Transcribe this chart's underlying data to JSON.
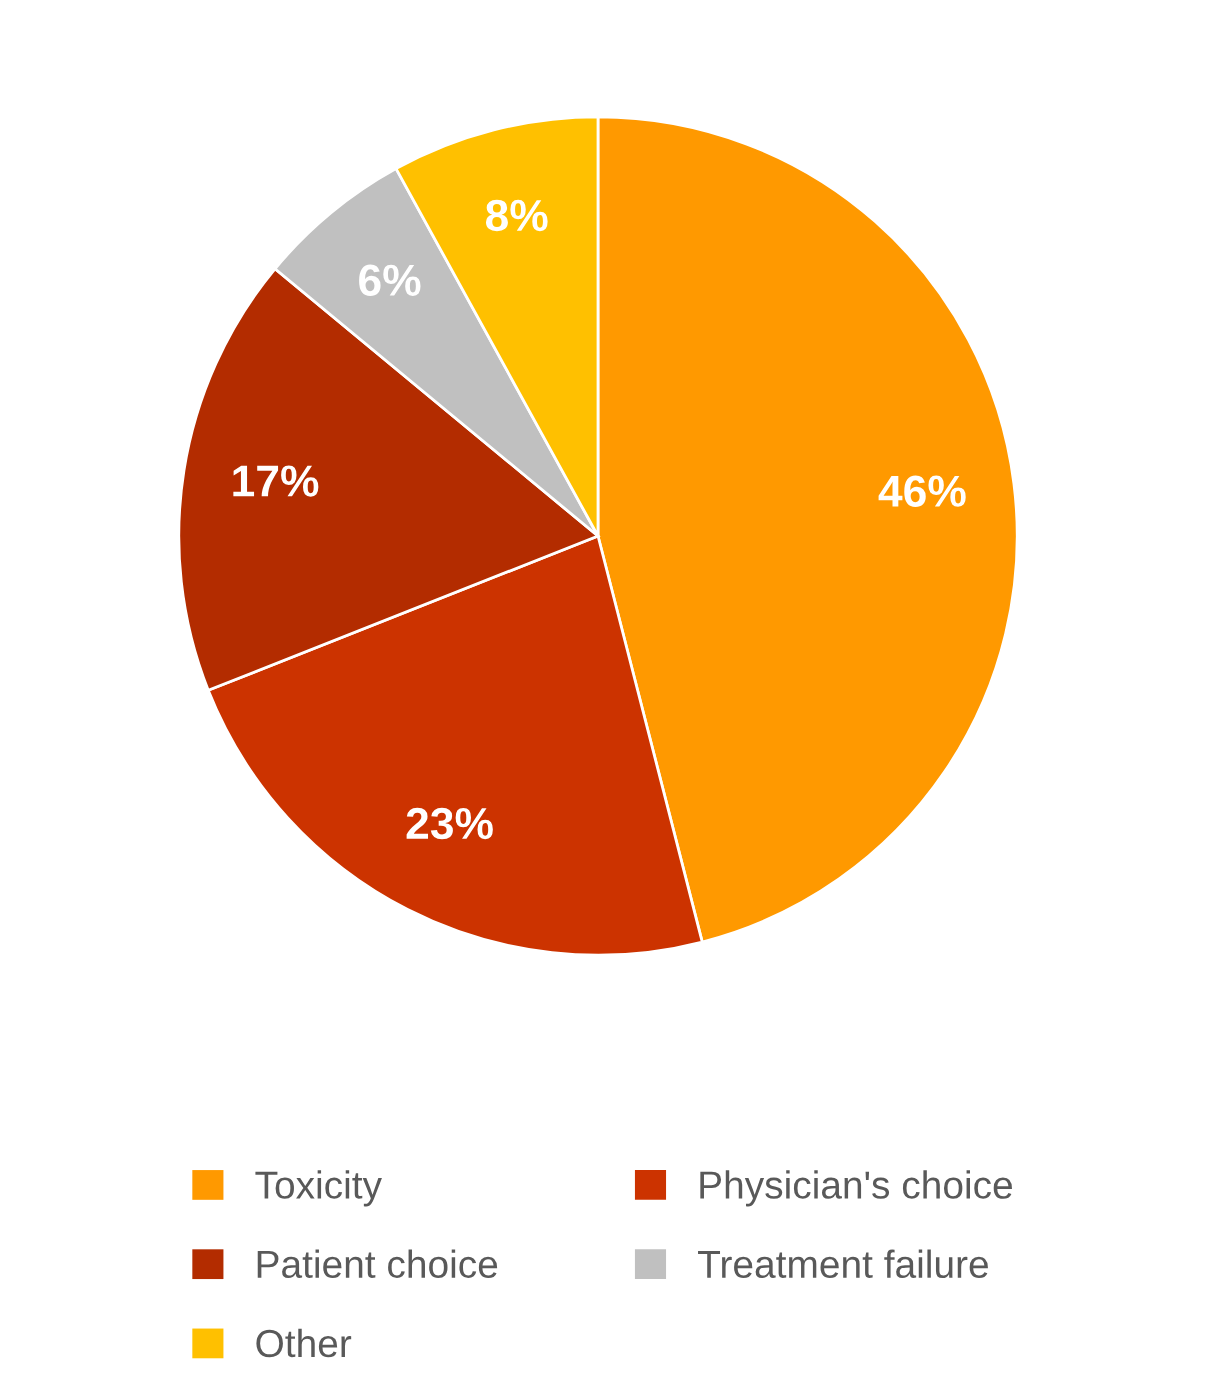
{
  "chart_data": {
    "type": "pie",
    "categories": [
      "Toxicity",
      "Physician's choice",
      "Patient choice",
      "Treatment failure",
      "Other"
    ],
    "values": [
      46,
      23,
      17,
      6,
      8
    ],
    "colors": [
      "#ff9900",
      "#cc3300",
      "#b32c00",
      "#c0c0c0",
      "#ffc000"
    ],
    "value_labels": [
      "46%",
      "23%",
      "17%",
      "6%",
      "8%"
    ],
    "legend": "bottom"
  }
}
